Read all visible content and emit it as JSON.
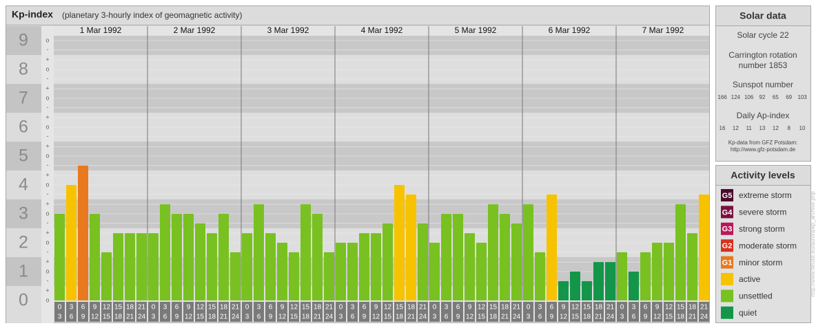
{
  "chart_data": {
    "type": "bar",
    "title": "Kp-index",
    "subtitle": "(planetary 3-hourly index of geomagnetic activity)",
    "ylim": [
      0,
      9.5
    ],
    "yticks": [
      0,
      1,
      2,
      3,
      4,
      5,
      6,
      7,
      8,
      9
    ],
    "minor_yticks": [
      {
        "value": 0,
        "label": "o"
      },
      {
        "value": 0.33,
        "label": "+"
      },
      {
        "value": 0.67,
        "label": "-"
      },
      {
        "value": 1,
        "label": "o"
      },
      {
        "value": 1.33,
        "label": "+"
      },
      {
        "value": 1.67,
        "label": "-"
      },
      {
        "value": 2,
        "label": "o"
      },
      {
        "value": 2.33,
        "label": "+"
      },
      {
        "value": 2.67,
        "label": "-"
      },
      {
        "value": 3,
        "label": "o"
      },
      {
        "value": 3.33,
        "label": "+"
      },
      {
        "value": 3.67,
        "label": "-"
      },
      {
        "value": 4,
        "label": "o"
      },
      {
        "value": 4.33,
        "label": "+"
      },
      {
        "value": 4.67,
        "label": "-"
      },
      {
        "value": 5,
        "label": "o"
      },
      {
        "value": 5.33,
        "label": "+"
      },
      {
        "value": 5.67,
        "label": "-"
      },
      {
        "value": 6,
        "label": "o"
      },
      {
        "value": 6.33,
        "label": "+"
      },
      {
        "value": 6.67,
        "label": "-"
      },
      {
        "value": 7,
        "label": "o"
      },
      {
        "value": 7.33,
        "label": "+"
      },
      {
        "value": 7.67,
        "label": "-"
      },
      {
        "value": 8,
        "label": "o"
      },
      {
        "value": 8.33,
        "label": "+"
      },
      {
        "value": 8.67,
        "label": "-"
      },
      {
        "value": 9,
        "label": "o"
      }
    ],
    "grid": true,
    "hours": [
      [
        "0",
        "3"
      ],
      [
        "3",
        "6"
      ],
      [
        "6",
        "9"
      ],
      [
        "9",
        "12"
      ],
      [
        "12",
        "15"
      ],
      [
        "15",
        "18"
      ],
      [
        "18",
        "21"
      ],
      [
        "21",
        "24"
      ]
    ],
    "days": [
      {
        "label": "1 Mar 1992",
        "values": [
          3,
          4,
          4.67,
          3,
          1.67,
          2.33,
          2.33,
          2.33
        ],
        "colors": [
          "#78c120",
          "#f7c300",
          "#e8791e",
          "#78c120",
          "#78c120",
          "#78c120",
          "#78c120",
          "#78c120"
        ]
      },
      {
        "label": "2 Mar 1992",
        "values": [
          2.33,
          3.33,
          3,
          3,
          2.67,
          2.33,
          3,
          1.67
        ],
        "colors": [
          "#78c120",
          "#78c120",
          "#78c120",
          "#78c120",
          "#78c120",
          "#78c120",
          "#78c120",
          "#78c120"
        ]
      },
      {
        "label": "3 Mar 1992",
        "values": [
          2.33,
          3.33,
          2.33,
          2,
          1.67,
          3.33,
          3,
          1.67
        ],
        "colors": [
          "#78c120",
          "#78c120",
          "#78c120",
          "#78c120",
          "#78c120",
          "#78c120",
          "#78c120",
          "#78c120"
        ]
      },
      {
        "label": "4 Mar 1992",
        "values": [
          2,
          2,
          2.33,
          2.33,
          2.67,
          4,
          3.67,
          2.67
        ],
        "colors": [
          "#78c120",
          "#78c120",
          "#78c120",
          "#78c120",
          "#78c120",
          "#f7c300",
          "#f7c300",
          "#78c120"
        ]
      },
      {
        "label": "5 Mar 1992",
        "values": [
          2,
          3,
          3,
          2.33,
          2,
          3.33,
          3,
          2.67
        ],
        "colors": [
          "#78c120",
          "#78c120",
          "#78c120",
          "#78c120",
          "#78c120",
          "#78c120",
          "#78c120",
          "#78c120"
        ]
      },
      {
        "label": "6 Mar 1992",
        "values": [
          3.33,
          1.67,
          3.67,
          0.67,
          1,
          0.67,
          1.33,
          1.33
        ],
        "colors": [
          "#78c120",
          "#78c120",
          "#f7c300",
          "#14964a",
          "#14964a",
          "#14964a",
          "#14964a",
          "#14964a"
        ]
      },
      {
        "label": "7 Mar 1992",
        "values": [
          1.67,
          1,
          1.67,
          2,
          2,
          3.33,
          2.33,
          3.67
        ],
        "colors": [
          "#78c120",
          "#14964a",
          "#78c120",
          "#78c120",
          "#78c120",
          "#78c120",
          "#78c120",
          "#f7c300"
        ]
      }
    ]
  },
  "solar_data": {
    "title": "Solar data",
    "cycle": "Solar cycle 22",
    "carrington": [
      "Carrington rotation",
      "number 1853"
    ],
    "sunspot_title": "Sunspot number",
    "sunspot": [
      166,
      124,
      106,
      92,
      65,
      69,
      103
    ],
    "ap_title": "Daily Ap-index",
    "ap": [
      16,
      12,
      11,
      13,
      12,
      8,
      10
    ],
    "source": [
      "Kp-data from GFZ Potsdam:",
      "http://www.gfz-potsdam.de"
    ]
  },
  "activity_levels": {
    "title": "Activity levels",
    "levels": [
      {
        "badge": "G5",
        "label": "extreme storm",
        "color": "#4b0a2c"
      },
      {
        "badge": "G4",
        "label": "severe storm",
        "color": "#7a1040"
      },
      {
        "badge": "G3",
        "label": "strong storm",
        "color": "#b8185a"
      },
      {
        "badge": "G2",
        "label": "moderate storm",
        "color": "#d5321f"
      },
      {
        "badge": "G1",
        "label": "minor storm",
        "color": "#e8791e"
      },
      {
        "label": "active",
        "color": "#f7c300"
      },
      {
        "label": "unsettled",
        "color": "#78c120"
      },
      {
        "label": "quiet",
        "color": "#14964a"
      }
    ]
  },
  "side_url": "http://www.fleuse.eu/aurora/kp_archive.php"
}
